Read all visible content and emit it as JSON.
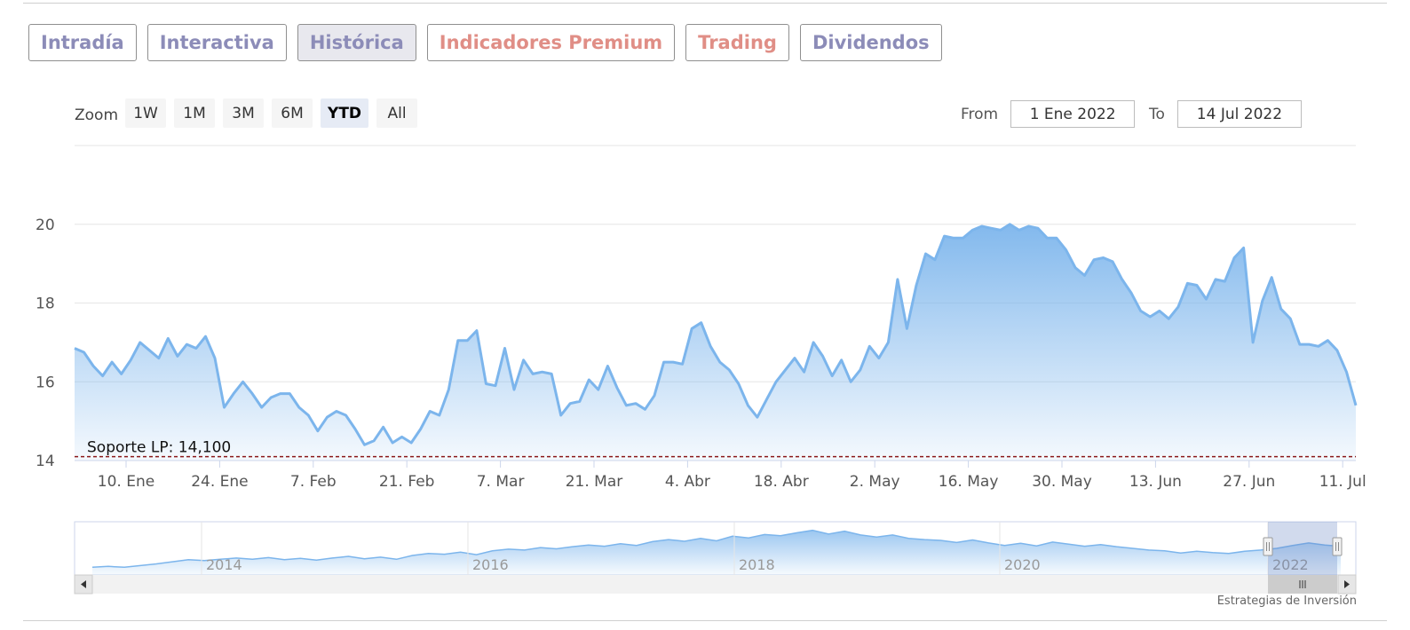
{
  "tabs": [
    {
      "label": "Intradía",
      "color": "#8c8cb8"
    },
    {
      "label": "Interactiva",
      "color": "#8c8cb8"
    },
    {
      "label": "Histórica",
      "color": "#8c8cb8",
      "active": true
    },
    {
      "label": "Indicadores Premium",
      "color": "#e08e86"
    },
    {
      "label": "Trading",
      "color": "#e08e86"
    },
    {
      "label": "Dividendos",
      "color": "#8c8cb8"
    }
  ],
  "zoom": {
    "label": "Zoom",
    "buttons": [
      "1W",
      "1M",
      "3M",
      "6M",
      "YTD",
      "All"
    ],
    "active": "YTD"
  },
  "range": {
    "from_label": "From",
    "from_value": "1 Ene 2022",
    "to_label": "To",
    "to_value": "14 Jul 2022"
  },
  "credit": "Estrategias de Inversión",
  "chart_data": {
    "type": "area",
    "ylim": [
      14,
      22
    ],
    "y_ticks": [
      14,
      16,
      18,
      20
    ],
    "x_tick_labels": [
      "10. Ene",
      "24. Ene",
      "7. Feb",
      "21. Feb",
      "7. Mar",
      "21. Mar",
      "4. Abr",
      "18. Abr",
      "2. May",
      "16. May",
      "30. May",
      "13. Jun",
      "27. Jun",
      "11. Jul"
    ],
    "color": "#7cb5ec",
    "grid": true,
    "support": {
      "label": "Soporte LP: 14,100",
      "value": 14.1,
      "color": "#8b1a1a"
    },
    "series": [
      {
        "values": [
          16.85,
          16.75,
          16.4,
          16.15,
          16.5,
          16.2,
          16.55,
          17.0,
          16.8,
          16.6,
          17.1,
          16.65,
          16.95,
          16.85,
          17.15,
          16.6,
          15.35,
          15.7,
          16.0,
          15.7,
          15.35,
          15.6,
          15.7,
          15.7,
          15.35,
          15.15,
          14.75,
          15.1,
          15.25,
          15.15,
          14.8,
          14.4,
          14.5,
          14.85,
          14.45,
          14.6,
          14.45,
          14.8,
          15.25,
          15.15,
          15.8,
          17.05,
          17.05,
          17.3,
          15.95,
          15.9,
          16.85,
          15.8,
          16.55,
          16.2,
          16.25,
          16.2,
          15.15,
          15.45,
          15.5,
          16.05,
          15.8,
          16.4,
          15.85,
          15.4,
          15.45,
          15.3,
          15.65,
          16.5,
          16.5,
          16.45,
          17.35,
          17.5,
          16.9,
          16.5,
          16.3,
          15.95,
          15.4,
          15.1,
          15.55,
          16.0,
          16.3,
          16.6,
          16.25,
          17.0,
          16.65,
          16.15,
          16.55,
          16.0,
          16.3,
          16.9,
          16.6,
          17.0,
          18.6,
          17.35,
          18.45,
          19.25,
          19.1,
          19.7,
          19.65,
          19.65,
          19.85,
          19.95,
          19.9,
          19.85,
          20.0,
          19.85,
          19.95,
          19.9,
          19.65,
          19.65,
          19.35,
          18.9,
          18.7,
          19.1,
          19.15,
          19.05,
          18.6,
          18.25,
          17.8,
          17.65,
          17.8,
          17.6,
          17.9,
          18.5,
          18.45,
          18.1,
          18.6,
          18.55,
          19.15,
          19.4,
          17.0,
          18.05,
          18.65,
          17.85,
          17.6,
          16.95,
          16.95,
          16.9,
          17.05,
          16.8,
          16.25,
          15.4
        ]
      }
    ],
    "navigator": {
      "x_tick_labels": [
        "2014",
        "2016",
        "2018",
        "2020",
        "2022"
      ],
      "values": [
        11.0,
        11.2,
        11.0,
        11.4,
        11.8,
        12.3,
        12.8,
        12.6,
        12.9,
        13.2,
        12.9,
        13.3,
        12.8,
        13.1,
        12.7,
        13.2,
        13.6,
        13.0,
        13.4,
        12.9,
        13.8,
        14.3,
        14.1,
        14.6,
        14.0,
        14.9,
        15.3,
        15.1,
        15.7,
        15.4,
        15.9,
        16.3,
        16.0,
        16.6,
        16.2,
        17.1,
        17.6,
        17.2,
        17.9,
        17.3,
        18.4,
        18.0,
        18.8,
        18.5,
        19.2,
        19.8,
        18.9,
        19.6,
        18.7,
        18.2,
        18.7,
        17.9,
        17.6,
        17.4,
        16.9,
        17.5,
        16.8,
        16.2,
        16.7,
        16.1,
        17.0,
        16.5,
        16.0,
        16.4,
        15.9,
        15.5,
        15.1,
        14.9,
        14.4,
        14.8,
        14.5,
        14.3,
        14.8,
        15.1,
        15.5,
        16.2,
        16.8,
        16.3,
        16.0
      ]
    }
  }
}
